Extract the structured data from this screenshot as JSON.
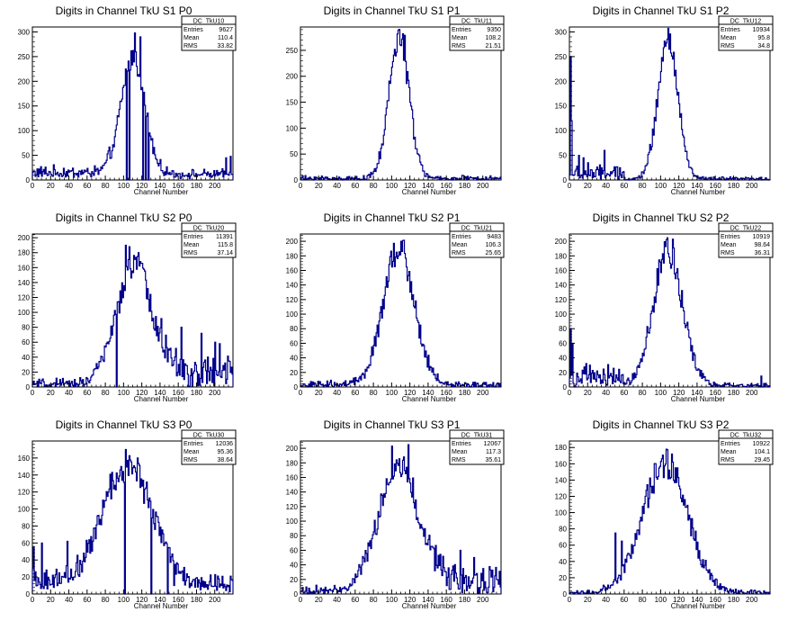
{
  "chart_data": [
    {
      "type": "bar",
      "title": "Digits in Channel TkU S1 P0",
      "xlabel": "Channel Number",
      "ylabel": "",
      "xlim": [
        0,
        220
      ],
      "ylim": [
        0,
        310
      ],
      "xticks": [
        0,
        20,
        40,
        60,
        80,
        100,
        120,
        140,
        160,
        180,
        200
      ],
      "yticks": [
        0,
        50,
        100,
        150,
        200,
        250,
        300
      ],
      "legend": {
        "name": "DC_TkU10",
        "entries": "9627",
        "mean": "110.4",
        "rms": "33.82"
      },
      "peaks": [
        {
          "x": 112,
          "y": 298
        },
        {
          "x": 118,
          "y": 290
        }
      ],
      "stats": {
        "mean": 110.4,
        "sigma": 13,
        "peak": 240,
        "n": 9627,
        "noise": "base"
      },
      "spikes": [
        {
          "x": 212,
          "y": 45
        },
        {
          "x": 217,
          "y": 48
        },
        {
          "x": 103,
          "y": 0
        },
        {
          "x": 106,
          "y": 0
        },
        {
          "x": 121,
          "y": 0
        },
        {
          "x": 124,
          "y": 0
        },
        {
          "x": 127,
          "y": 0
        }
      ]
    },
    {
      "type": "bar",
      "title": "Digits in Channel TkU S1 P1",
      "xlabel": "Channel Number",
      "ylabel": "",
      "xlim": [
        0,
        220
      ],
      "ylim": [
        0,
        295
      ],
      "xticks": [
        0,
        20,
        40,
        60,
        80,
        100,
        120,
        140,
        160,
        180,
        200
      ],
      "yticks": [
        0,
        50,
        100,
        150,
        200,
        250
      ],
      "legend": {
        "name": "DC_TkU11",
        "entries": "9350",
        "mean": "108.2",
        "rms": "21.51"
      },
      "peaks": [
        {
          "x": 112,
          "y": 282
        },
        {
          "x": 114,
          "y": 279
        }
      ],
      "stats": {
        "mean": 108.2,
        "sigma": 11,
        "peak": 272,
        "n": 9350,
        "noise": "low"
      },
      "spikes": []
    },
    {
      "type": "bar",
      "title": "Digits in Channel TkU S1 P2",
      "xlabel": "Channel Number",
      "ylabel": "",
      "xlim": [
        0,
        220
      ],
      "ylim": [
        0,
        310
      ],
      "xticks": [
        0,
        20,
        40,
        60,
        80,
        100,
        120,
        140,
        160,
        180,
        200
      ],
      "yticks": [
        0,
        50,
        100,
        150,
        200,
        250,
        300
      ],
      "legend": {
        "name": "DC_TkU12",
        "entries": "10934",
        "mean": "95.8",
        "rms": "34.8"
      },
      "peaks": [
        {
          "x": 110,
          "y": 296
        }
      ],
      "stats": {
        "mean": 108,
        "sigma": 11,
        "peak": 280,
        "n": 10934,
        "noise": "left"
      },
      "spikes": [
        {
          "x": 1,
          "y": 250
        },
        {
          "x": 2,
          "y": 120
        },
        {
          "x": 10,
          "y": 50
        },
        {
          "x": 15,
          "y": 45
        },
        {
          "x": 20,
          "y": 35
        },
        {
          "x": 38,
          "y": 60
        }
      ]
    },
    {
      "type": "bar",
      "title": "Digits in Channel TkU S2 P0",
      "xlabel": "Channel Number",
      "ylabel": "",
      "xlim": [
        0,
        220
      ],
      "ylim": [
        0,
        205
      ],
      "xticks": [
        0,
        20,
        40,
        60,
        80,
        100,
        120,
        140,
        160,
        180,
        200
      ],
      "yticks": [
        0,
        20,
        40,
        60,
        80,
        100,
        120,
        140,
        160,
        180,
        200
      ],
      "legend": {
        "name": "DC_TkU20",
        "entries": "11391",
        "mean": "115.8",
        "rms": "37.14"
      },
      "peaks": [
        {
          "x": 102,
          "y": 190
        },
        {
          "x": 106,
          "y": 188
        },
        {
          "x": 116,
          "y": 180
        }
      ],
      "stats": {
        "mean": 112,
        "sigma": 20,
        "peak": 160,
        "n": 11391,
        "noise": "tail"
      },
      "spikes": [
        {
          "x": 92,
          "y": 0
        },
        {
          "x": 163,
          "y": 80
        },
        {
          "x": 185,
          "y": 72
        },
        {
          "x": 200,
          "y": 60
        },
        {
          "x": 205,
          "y": 58
        },
        {
          "x": 215,
          "y": 35
        }
      ]
    },
    {
      "type": "bar",
      "title": "Digits in Channel TkU S2 P1",
      "xlabel": "Channel Number",
      "ylabel": "",
      "xlim": [
        0,
        220
      ],
      "ylim": [
        0,
        210
      ],
      "xticks": [
        0,
        20,
        40,
        60,
        80,
        100,
        120,
        140,
        160,
        180,
        200
      ],
      "yticks": [
        0,
        20,
        40,
        60,
        80,
        100,
        120,
        140,
        160,
        180,
        200
      ],
      "legend": {
        "name": "DC_TkU21",
        "entries": "9483",
        "mean": "106.3",
        "rms": "25.65"
      },
      "peaks": [
        {
          "x": 110,
          "y": 200
        }
      ],
      "stats": {
        "mean": 108,
        "sigma": 17,
        "peak": 190,
        "n": 9483,
        "noise": "low"
      },
      "spikes": []
    },
    {
      "type": "bar",
      "title": "Digits in Channel TkU S2 P2",
      "xlabel": "Channel Number",
      "ylabel": "",
      "xlim": [
        0,
        220
      ],
      "ylim": [
        0,
        210
      ],
      "xticks": [
        0,
        20,
        40,
        60,
        80,
        100,
        120,
        140,
        160,
        180,
        200
      ],
      "yticks": [
        0,
        20,
        40,
        60,
        80,
        100,
        120,
        140,
        160,
        180,
        200
      ],
      "legend": {
        "name": "DC_TkU22",
        "entries": "10919",
        "mean": "98.64",
        "rms": "36.31"
      },
      "peaks": [
        {
          "x": 113,
          "y": 203
        }
      ],
      "stats": {
        "mean": 108,
        "sigma": 16,
        "peak": 185,
        "n": 10919,
        "noise": "left"
      },
      "spikes": [
        {
          "x": 1,
          "y": 80
        },
        {
          "x": 3,
          "y": 60
        },
        {
          "x": 22,
          "y": 30
        },
        {
          "x": 30,
          "y": 22
        },
        {
          "x": 210,
          "y": 15
        }
      ]
    },
    {
      "type": "bar",
      "title": "Digits in Channel TkU S3 P0",
      "xlabel": "Channel Number",
      "ylabel": "",
      "xlim": [
        0,
        220
      ],
      "ylim": [
        0,
        180
      ],
      "xticks": [
        0,
        20,
        40,
        60,
        80,
        100,
        120,
        140,
        160,
        180,
        200
      ],
      "yticks": [
        0,
        20,
        40,
        60,
        80,
        100,
        120,
        140,
        160
      ],
      "legend": {
        "name": "DC_TkU30",
        "entries": "12036",
        "mean": "95.36",
        "rms": "38.64"
      },
      "peaks": [
        {
          "x": 102,
          "y": 170
        },
        {
          "x": 115,
          "y": 160
        }
      ],
      "stats": {
        "mean": 105,
        "sigma": 27,
        "peak": 140,
        "n": 12036,
        "noise": "base"
      },
      "spikes": [
        {
          "x": 1,
          "y": 55
        },
        {
          "x": 10,
          "y": 60
        },
        {
          "x": 38,
          "y": 62
        },
        {
          "x": 101,
          "y": 0
        },
        {
          "x": 130,
          "y": 0
        },
        {
          "x": 148,
          "y": 0
        },
        {
          "x": 155,
          "y": 10
        }
      ]
    },
    {
      "type": "bar",
      "title": "Digits in Channel TkU S3 P1",
      "xlabel": "Channel Number",
      "ylabel": "",
      "xlim": [
        0,
        220
      ],
      "ylim": [
        0,
        210
      ],
      "xticks": [
        0,
        20,
        40,
        60,
        80,
        100,
        120,
        140,
        160,
        180,
        200
      ],
      "yticks": [
        0,
        20,
        40,
        60,
        80,
        100,
        120,
        140,
        160,
        180,
        200
      ],
      "legend": {
        "name": "DC_TkU31",
        "entries": "12067",
        "mean": "117.3",
        "rms": "35.61"
      },
      "peaks": [
        {
          "x": 100,
          "y": 203
        },
        {
          "x": 118,
          "y": 205
        }
      ],
      "stats": {
        "mean": 108,
        "sigma": 22,
        "peak": 175,
        "n": 12067,
        "noise": "tail"
      },
      "spikes": [
        {
          "x": 175,
          "y": 60
        },
        {
          "x": 190,
          "y": 50
        },
        {
          "x": 200,
          "y": 35
        },
        {
          "x": 215,
          "y": 20
        }
      ]
    },
    {
      "type": "bar",
      "title": "Digits in Channel TkU S3 P2",
      "xlabel": "Channel Number",
      "ylabel": "",
      "xlim": [
        0,
        220
      ],
      "ylim": [
        0,
        188
      ],
      "xticks": [
        0,
        20,
        40,
        60,
        80,
        100,
        120,
        140,
        160,
        180,
        200
      ],
      "yticks": [
        0,
        20,
        40,
        60,
        80,
        100,
        120,
        140,
        160,
        180
      ],
      "legend": {
        "name": "DC_TkU32",
        "entries": "10922",
        "mean": "104.1",
        "rms": "29.45"
      },
      "peaks": [
        {
          "x": 106,
          "y": 178
        },
        {
          "x": 112,
          "y": 172
        }
      ],
      "stats": {
        "mean": 105,
        "sigma": 25,
        "peak": 160,
        "n": 10922,
        "noise": "none"
      },
      "spikes": [
        {
          "x": 50,
          "y": 75
        },
        {
          "x": 57,
          "y": 65
        }
      ]
    }
  ],
  "legend_labels": {
    "entries": "Entries",
    "mean": "Mean",
    "rms": "RMS"
  },
  "colors": {
    "line": "#00008b",
    "axis": "#000000",
    "background": "#ffffff"
  }
}
